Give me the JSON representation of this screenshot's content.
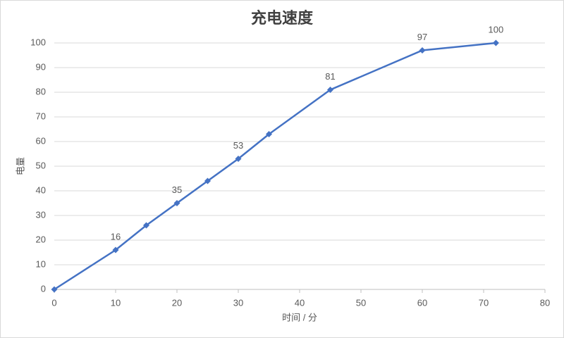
{
  "chart_data": {
    "type": "line",
    "title": "充电速度",
    "x_label": "时间 / 分",
    "y_label": "电量",
    "x": [
      0,
      10,
      15,
      20,
      25,
      30,
      35,
      45,
      60,
      72
    ],
    "series": [
      {
        "name": "电量",
        "color": "#4472c4",
        "values": [
          0,
          16,
          26,
          35,
          44,
          53,
          63,
          81,
          97,
          100
        ],
        "value_labels": [
          null,
          "16",
          null,
          "35",
          null,
          "53",
          null,
          "81",
          "97",
          "100"
        ]
      }
    ],
    "xlim": [
      0,
      80
    ],
    "xticks": [
      0,
      10,
      20,
      30,
      40,
      50,
      60,
      70,
      80
    ],
    "ylim": [
      0,
      100
    ],
    "yticks": [
      0,
      10,
      20,
      30,
      40,
      50,
      60,
      70,
      80,
      90,
      100
    ],
    "grid": true,
    "legend": false
  }
}
